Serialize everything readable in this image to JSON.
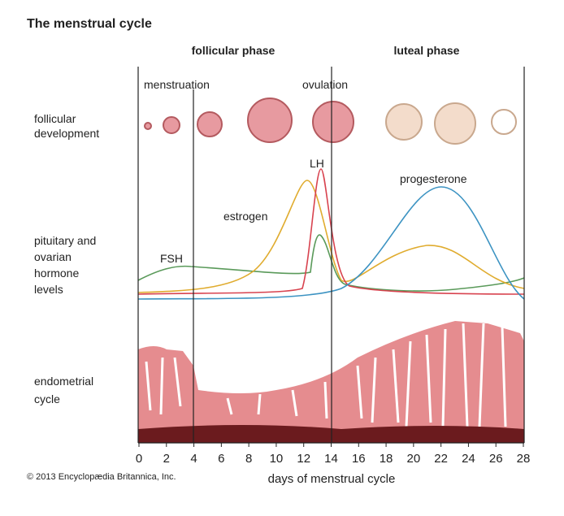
{
  "title": "The menstrual cycle",
  "phases": [
    "follicular phase",
    "luteal phase"
  ],
  "events": [
    "menstruation",
    "ovulation"
  ],
  "hormones": {
    "lh": "LH",
    "estrogen": "estrogen",
    "progesterone": "progesterone",
    "fsh": "FSH"
  },
  "rows": {
    "follicular": [
      "follicular",
      "development"
    ],
    "hormone": [
      "pituitary and",
      "ovarian",
      "hormone",
      "levels"
    ],
    "endometrial": [
      "endometrial",
      "cycle"
    ]
  },
  "axis": {
    "label": "days of menstrual cycle",
    "ticks": [
      0,
      2,
      4,
      6,
      8,
      10,
      12,
      14,
      16,
      18,
      20,
      22,
      24,
      26,
      28
    ]
  },
  "copyright": "© 2013 Encyclopædia Britannica, Inc."
}
